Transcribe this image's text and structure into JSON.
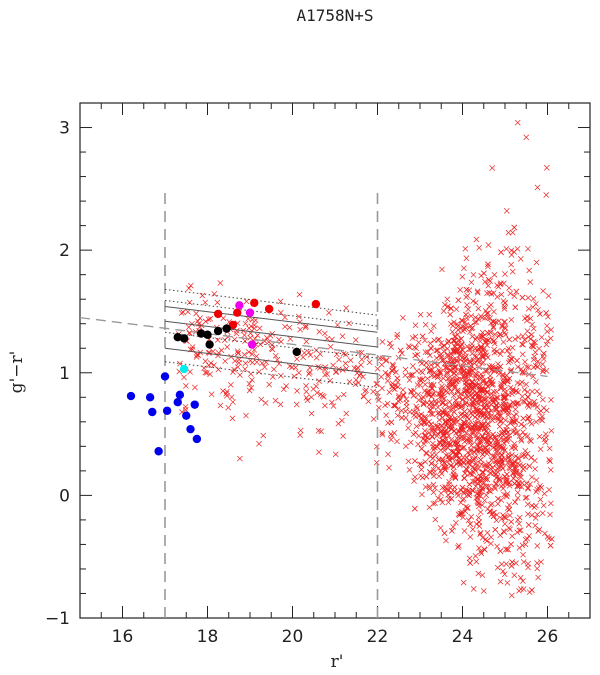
{
  "chart_data": {
    "type": "scatter",
    "title": "A1758N+S",
    "xlabel": "r'",
    "ylabel": "g'−r'",
    "xlim": [
      15,
      27
    ],
    "ylim": [
      -1,
      3.2
    ],
    "x_ticks": [
      16,
      18,
      20,
      22,
      24,
      26
    ],
    "y_ticks": [
      -1,
      0,
      1,
      2,
      3
    ],
    "x_tick_labels": [
      "16",
      "18",
      "20",
      "22",
      "24",
      "26"
    ],
    "y_tick_labels": [
      "−1",
      "0",
      "1",
      "2",
      "3"
    ],
    "grid": false,
    "legend": "none",
    "vertical_dashed_lines": [
      17,
      22
    ],
    "vertical_dashed_range": [
      -1,
      2.5
    ],
    "red_sequence_dashed": {
      "x": [
        15,
        26
      ],
      "y": [
        1.45,
        0.97
      ]
    },
    "red_sequence_solid": [
      {
        "x": [
          17,
          22
        ],
        "y": [
          1.54,
          1.33
        ]
      },
      {
        "x": [
          17,
          22
        ],
        "y": [
          1.42,
          1.21
        ]
      },
      {
        "x": [
          17,
          22
        ],
        "y": [
          1.2,
          0.99
        ]
      }
    ],
    "red_sequence_dotted": [
      {
        "x": [
          17,
          22
        ],
        "y": [
          1.68,
          1.47
        ]
      },
      {
        "x": [
          17,
          22
        ],
        "y": [
          1.59,
          1.38
        ]
      },
      {
        "x": [
          17,
          22
        ],
        "y": [
          1.33,
          1.12
        ]
      },
      {
        "x": [
          17,
          22
        ],
        "y": [
          1.09,
          0.88
        ]
      }
    ],
    "colors": {
      "field": "#ee2222",
      "red_members": "#ee0000",
      "magenta_members": "#ee00ee",
      "black_members": "#000000",
      "blue_members": "#0000ee",
      "cyan_member": "#00eeee",
      "dashed_line": "#999999",
      "solid_line": "#555555",
      "dotted_line": "#444444"
    },
    "series": [
      {
        "marker": "x",
        "color": "#ee2222",
        "generator": {
          "seed": 1758,
          "n_bright": 320,
          "n_faint": 1900
        }
      },
      {
        "marker": "dot",
        "color": "#ee0000",
        "x": [
          18.25,
          18.6,
          18.7,
          19.1,
          19.45,
          20.55
        ],
        "y": [
          1.48,
          1.39,
          1.49,
          1.57,
          1.52,
          1.56
        ]
      },
      {
        "marker": "dot",
        "color": "#ee00ee",
        "x": [
          17.85,
          18.75,
          19.0,
          19.05
        ],
        "y": [
          1.32,
          1.55,
          1.49,
          1.23
        ]
      },
      {
        "marker": "dot",
        "color": "#000000",
        "x": [
          17.3,
          17.45,
          17.85,
          18.0,
          18.05,
          18.25,
          18.45,
          20.1
        ],
        "y": [
          1.29,
          1.28,
          1.32,
          1.31,
          1.23,
          1.34,
          1.36,
          1.17
        ]
      },
      {
        "marker": "dot",
        "color": "#0000ee",
        "x": [
          16.2,
          16.65,
          16.7,
          16.85,
          17.0,
          17.05,
          17.3,
          17.35,
          17.5,
          17.6,
          17.7,
          17.75
        ],
        "y": [
          0.81,
          0.8,
          0.68,
          0.36,
          0.97,
          0.69,
          0.76,
          0.82,
          0.65,
          0.54,
          0.74,
          0.46
        ]
      },
      {
        "marker": "dot",
        "color": "#00eeee",
        "x": [
          17.45
        ],
        "y": [
          1.03
        ]
      }
    ]
  }
}
